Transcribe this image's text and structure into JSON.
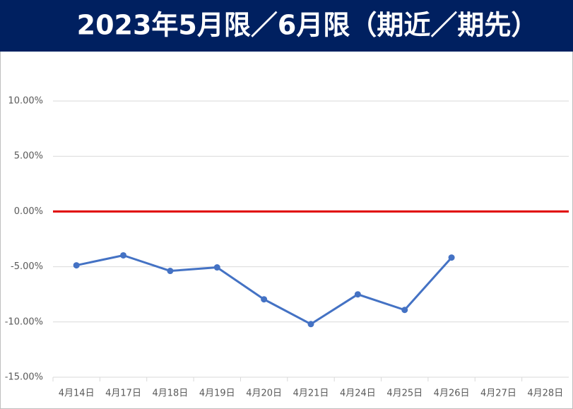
{
  "chart_data": {
    "type": "line",
    "title": "2023年5月限／6月限（期近／期先）",
    "categories": [
      "4月14日",
      "4月17日",
      "4月18日",
      "4月19日",
      "4月20日",
      "4月21日",
      "4月24日",
      "4月25日",
      "4月26日",
      "4月27日",
      "4月28日"
    ],
    "series": [
      {
        "name": "期近／期先",
        "color": "#4472c4",
        "values": [
          -4.87,
          -3.97,
          -5.38,
          -5.06,
          -7.95,
          -10.19,
          -7.5,
          -8.91,
          -4.17,
          null,
          null
        ]
      }
    ],
    "ylim": [
      -15,
      10
    ],
    "yticks": [
      {
        "value": -15,
        "label": "-15.00%"
      },
      {
        "value": -10,
        "label": "-10.00%"
      },
      {
        "value": -5,
        "label": "-5.00%"
      },
      {
        "value": 0,
        "label": "0.00%"
      },
      {
        "value": 5,
        "label": "5.00%"
      },
      {
        "value": 10,
        "label": "10.00%"
      }
    ],
    "grid": true,
    "zero_line_color": "#e00000",
    "header_color": "#002060"
  }
}
